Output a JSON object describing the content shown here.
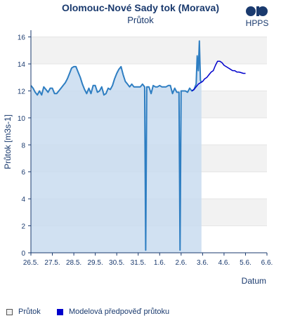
{
  "header": {
    "title": "Olomouc-Nové Sady tok (Morava)",
    "subtitle": "Průtok"
  },
  "logo": {
    "text": "HPPS"
  },
  "legend": {
    "observed_label": "Průtok",
    "forecast_label": "Modelová předpověď průtoku"
  },
  "colors": {
    "observed_line": "#2e7ec2",
    "observed_fill": "#c9dcf0",
    "forecast_line": "#0000cc",
    "band": "#f2f2f2",
    "axis": "#1a3a6e"
  },
  "chart_data": {
    "type": "line",
    "title": "Olomouc-Nové Sady tok (Morava)",
    "subtitle": "Průtok",
    "xlabel": "Datum",
    "ylabel": "Průtok [m3s-1]",
    "xlim": [
      0,
      11
    ],
    "ylim": [
      0,
      16.5
    ],
    "yticks": [
      0,
      2,
      4,
      6,
      8,
      10,
      12,
      14,
      16
    ],
    "xticks": [
      "26.5.",
      "27.5.",
      "28.5.",
      "29.5.",
      "30.5.",
      "31.5.",
      "1.6.",
      "2.6.",
      "3.6.",
      "4.6.",
      "5.6.",
      "6.6."
    ],
    "grid": "alternating horizontal bands",
    "series": [
      {
        "name": "Průtok",
        "kind": "observed",
        "x": [
          0.0,
          0.1,
          0.2,
          0.3,
          0.4,
          0.5,
          0.6,
          0.7,
          0.8,
          0.9,
          1.0,
          1.1,
          1.2,
          1.3,
          1.4,
          1.5,
          1.6,
          1.7,
          1.8,
          1.9,
          2.0,
          2.1,
          2.2,
          2.3,
          2.4,
          2.5,
          2.6,
          2.7,
          2.8,
          2.9,
          3.0,
          3.1,
          3.2,
          3.3,
          3.4,
          3.5,
          3.6,
          3.7,
          3.8,
          3.9,
          4.0,
          4.1,
          4.2,
          4.3,
          4.4,
          4.5,
          4.6,
          4.7,
          4.8,
          4.9,
          5.0,
          5.1,
          5.2,
          5.3,
          5.35,
          5.4,
          5.5,
          5.6,
          5.7,
          5.8,
          5.9,
          6.0,
          6.1,
          6.2,
          6.3,
          6.4,
          6.5,
          6.6,
          6.7,
          6.8,
          6.9,
          6.95,
          7.0,
          7.1,
          7.2,
          7.3,
          7.4,
          7.5,
          7.6,
          7.7,
          7.75,
          7.8,
          7.85,
          7.9,
          7.95
        ],
        "y": [
          12.4,
          12.2,
          11.9,
          11.7,
          12.0,
          11.7,
          12.3,
          12.1,
          11.9,
          12.2,
          12.2,
          11.8,
          11.8,
          12.0,
          12.2,
          12.4,
          12.6,
          12.9,
          13.3,
          13.7,
          13.8,
          13.8,
          13.4,
          13.0,
          12.5,
          12.1,
          11.8,
          12.2,
          11.8,
          12.4,
          12.4,
          11.9,
          12.0,
          12.3,
          11.7,
          11.8,
          12.2,
          12.1,
          12.4,
          12.9,
          13.3,
          13.6,
          13.8,
          13.2,
          12.7,
          12.5,
          12.3,
          12.5,
          12.3,
          12.3,
          12.3,
          12.3,
          12.5,
          12.3,
          0.2,
          12.3,
          12.3,
          11.8,
          12.4,
          12.3,
          12.3,
          12.4,
          12.3,
          12.3,
          12.3,
          12.4,
          12.4,
          11.8,
          12.2,
          11.9,
          11.9,
          0.2,
          12.0,
          12.0,
          12.0,
          11.9,
          12.2,
          12.0,
          12.1,
          12.5,
          14.6,
          13.5,
          15.7,
          12.8,
          12.6
        ]
      },
      {
        "name": "Modelová předpověď průtoku",
        "kind": "forecast",
        "x": [
          7.5,
          7.6,
          7.7,
          7.8,
          7.9,
          8.0,
          8.1,
          8.2,
          8.3,
          8.4,
          8.5,
          8.6,
          8.7,
          8.8,
          8.9,
          9.0,
          9.1,
          9.2,
          9.3,
          9.4,
          9.5,
          9.6,
          9.7,
          9.8,
          9.9,
          10.0
        ],
        "y": [
          12.0,
          12.1,
          12.3,
          12.5,
          12.6,
          12.7,
          12.9,
          13.0,
          13.2,
          13.4,
          13.5,
          13.9,
          14.2,
          14.2,
          14.1,
          13.9,
          13.8,
          13.7,
          13.6,
          13.5,
          13.5,
          13.4,
          13.4,
          13.35,
          13.3,
          13.3
        ]
      }
    ]
  }
}
